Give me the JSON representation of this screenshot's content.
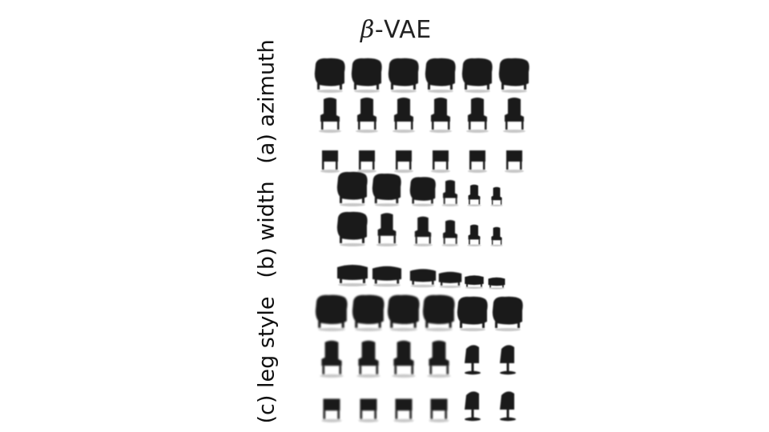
{
  "figure": {
    "title_symbol": "β",
    "title_text": "-VAE",
    "sections": [
      {
        "id": "azimuth",
        "label": "(a) azimuth",
        "rows": [
          [
            "armchair",
            "armchair",
            "armchair",
            "armchair",
            "armchair",
            "armchair"
          ],
          [
            "tallchair",
            "tallchair",
            "tallchair",
            "tallchair",
            "tallchair",
            "tallchair"
          ],
          [
            "smallchair",
            "smallchair",
            "smallchair",
            "smallchair",
            "smallchair",
            "smallchair"
          ]
        ]
      },
      {
        "id": "width",
        "label": "(b) width",
        "rows": [
          [
            "armchair",
            "armchair",
            "armchair",
            "tallchair",
            "tallchair",
            "tallchair"
          ],
          [
            "armchair",
            "tallchair",
            "tallchair",
            "tallchair",
            "tallchair",
            "tallchair"
          ],
          [
            "bench",
            "bench",
            "bench",
            "bench",
            "bench",
            "bench"
          ]
        ]
      },
      {
        "id": "legstyle",
        "label": "(c) leg style",
        "rows": [
          [
            "armchair",
            "armchair",
            "armchair",
            "armchair",
            "armchair",
            "armchair"
          ],
          [
            "tallchair",
            "tallchair",
            "tallchair",
            "tallchair",
            "swivel",
            "swivel"
          ],
          [
            "smallchair",
            "smallchair",
            "smallchair",
            "smallchair",
            "swivel",
            "swivel"
          ]
        ]
      }
    ]
  },
  "colors": {
    "ink": "#1a1a1a",
    "shadow": "#c8c8c8"
  }
}
